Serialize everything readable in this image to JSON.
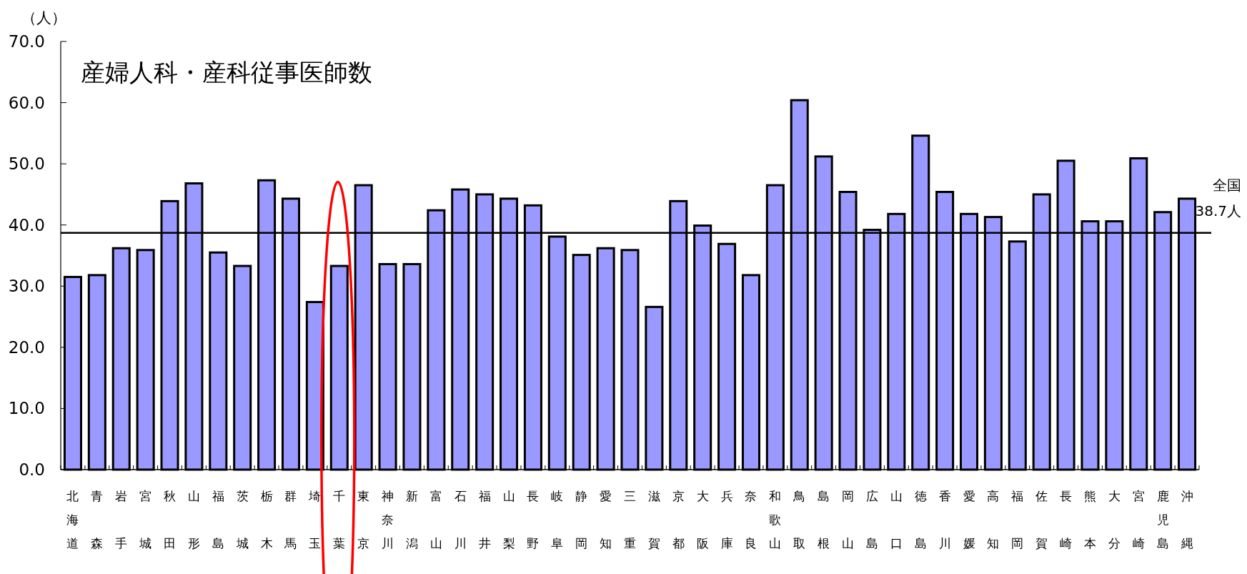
{
  "chart_data": {
    "type": "bar",
    "title": "産婦人科・産科従事医師数",
    "ylabel": "（人）",
    "categories": [
      "北海道",
      "青森",
      "岩手",
      "宮城",
      "秋田",
      "山形",
      "福島",
      "茨城",
      "栃木",
      "群馬",
      "埼玉",
      "千葉",
      "東京",
      "神奈川",
      "新潟",
      "富山",
      "石川",
      "福井",
      "山梨",
      "長野",
      "岐阜",
      "静岡",
      "愛知",
      "三重",
      "滋賀",
      "京都",
      "大阪",
      "兵庫",
      "奈良",
      "和歌山",
      "鳥取",
      "島根",
      "岡山",
      "広島",
      "山口",
      "徳島",
      "香川",
      "愛媛",
      "高知",
      "福岡",
      "佐賀",
      "長崎",
      "熊本",
      "大分",
      "宮崎",
      "鹿児島",
      "沖縄"
    ],
    "series": [
      {
        "color": "#9999ff",
        "values": [
          31.5,
          31.8,
          36.2,
          35.9,
          43.9,
          46.8,
          35.5,
          33.3,
          47.3,
          44.3,
          27.4,
          33.3,
          46.5,
          33.6,
          33.6,
          42.4,
          45.8,
          45.0,
          44.3,
          43.2,
          38.1,
          35.1,
          36.2,
          35.9,
          26.6,
          43.9,
          39.9,
          36.9,
          31.8,
          46.5,
          60.4,
          51.2,
          45.4,
          39.2,
          41.8,
          54.6,
          45.4,
          41.8,
          41.3,
          37.3,
          45.0,
          50.5,
          40.6,
          40.6,
          50.9,
          42.1,
          44.3
        ]
      }
    ],
    "ylim": [
      0,
      70
    ],
    "yticks": [
      {
        "value": 0,
        "label": "0.0"
      },
      {
        "value": 10,
        "label": "10.0"
      },
      {
        "value": 20,
        "label": "20.0"
      },
      {
        "value": 30,
        "label": "30.0"
      },
      {
        "value": 40,
        "label": "40.0"
      },
      {
        "value": 50,
        "label": "50.0"
      },
      {
        "value": 60,
        "label": "60.0"
      },
      {
        "value": 70,
        "label": "70.0"
      }
    ],
    "ref_lines": [
      {
        "axis": "y",
        "value": 38.7,
        "label": "全国 38.7人",
        "color": "#000000"
      }
    ],
    "grid": false
  }
}
